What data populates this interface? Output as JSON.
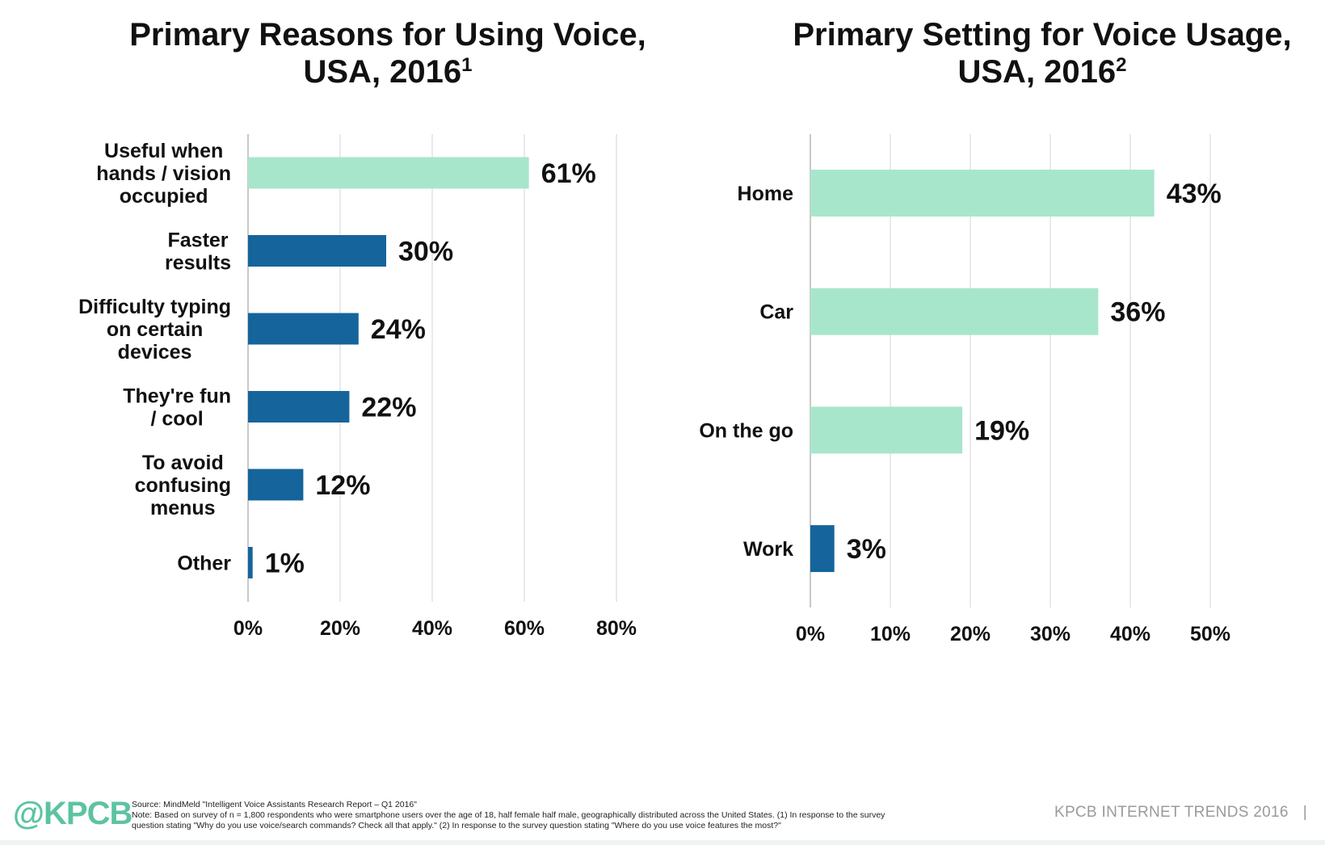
{
  "chart_data": [
    {
      "type": "bar",
      "orientation": "horizontal",
      "title": "Primary Reasons for Using Voice,",
      "title_line2": "USA, 2016",
      "title_sup": "1",
      "categories": [
        [
          "Useful when",
          "hands / vision",
          "occupied"
        ],
        [
          "Faster",
          "results"
        ],
        [
          "Difficulty typing",
          "on certain",
          "devices"
        ],
        [
          "They're fun",
          "/ cool"
        ],
        [
          "To avoid",
          "confusing",
          "menus"
        ],
        [
          "Other"
        ]
      ],
      "values": [
        61,
        30,
        24,
        22,
        12,
        1
      ],
      "value_labels": [
        "61%",
        "30%",
        "24%",
        "22%",
        "12%",
        "1%"
      ],
      "bar_colors": [
        "#a8e6cc",
        "#15649b",
        "#15649b",
        "#15649b",
        "#15649b",
        "#15649b"
      ],
      "xlim": [
        0,
        80
      ],
      "ticks": [
        0,
        20,
        40,
        60,
        80
      ],
      "tick_labels": [
        "0%",
        "20%",
        "40%",
        "60%",
        "80%"
      ],
      "grid": true,
      "legend": "none"
    },
    {
      "type": "bar",
      "orientation": "horizontal",
      "title": "Primary Setting for Voice Usage,",
      "title_line2": "USA, 2016",
      "title_sup": "2",
      "categories": [
        [
          "Home"
        ],
        [
          "Car"
        ],
        [
          "On the go"
        ],
        [
          "Work"
        ]
      ],
      "values": [
        43,
        36,
        19,
        3
      ],
      "value_labels": [
        "43%",
        "36%",
        "19%",
        "3%"
      ],
      "bar_colors": [
        "#a8e6cc",
        "#a8e6cc",
        "#a8e6cc",
        "#15649b"
      ],
      "xlim": [
        0,
        50
      ],
      "ticks": [
        0,
        10,
        20,
        30,
        40,
        50
      ],
      "tick_labels": [
        "0%",
        "10%",
        "20%",
        "30%",
        "40%",
        "50%"
      ],
      "grid": true,
      "legend": "none"
    }
  ],
  "footer": {
    "logo": "@KPCB",
    "source": "Source: MindMeld \"Intelligent Voice Assistants Research Report – Q1 2016\"",
    "note_line1": "Note: Based on survey of n = 1,800 respondents who were smartphone users over the age of 18, half female half male, geographically distributed across the United States. (1) In response to the survey",
    "note_line2": "question stating \"Why do you use voice/search commands? Check all that apply.\" (2) In response to the survey question stating \"Where do you use voice features the most?\"",
    "brand": "KPCB INTERNET TRENDS 2016",
    "separator": "|"
  }
}
